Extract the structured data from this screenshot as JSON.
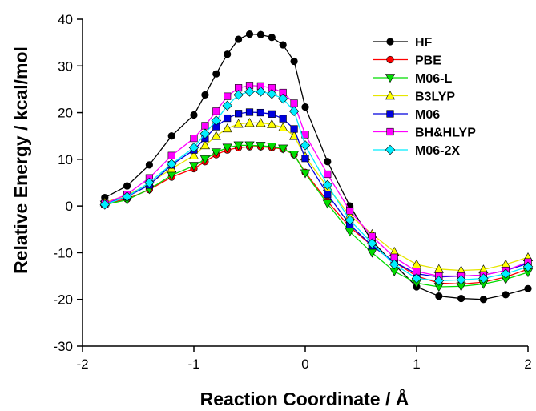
{
  "chart_data": {
    "type": "line",
    "xlabel": "Reaction Coordinate / Å",
    "ylabel": "Relative Energy / kcal/mol",
    "xlim": [
      -2,
      2
    ],
    "ylim": [
      -30,
      40
    ],
    "xticks": [
      -2,
      -1,
      0,
      1,
      2
    ],
    "yticks": [
      -30,
      -20,
      -10,
      0,
      10,
      20,
      30,
      40
    ],
    "grid": false,
    "legend_position": "top-right",
    "x": [
      -1.8,
      -1.6,
      -1.4,
      -1.2,
      -1.0,
      -0.9,
      -0.8,
      -0.7,
      -0.6,
      -0.5,
      -0.4,
      -0.3,
      -0.2,
      -0.1,
      0.0,
      0.2,
      0.4,
      0.6,
      0.8,
      1.0,
      1.2,
      1.4,
      1.6,
      1.8,
      2.0
    ],
    "series": [
      {
        "name": "HF",
        "color": "#000000",
        "marker": "circle",
        "values": [
          1.8,
          4.3,
          8.8,
          15.0,
          19.5,
          23.8,
          28.3,
          32.5,
          35.7,
          36.8,
          36.7,
          36.1,
          34.5,
          31.0,
          21.2,
          9.5,
          0.0,
          -7.5,
          -12.5,
          -17.3,
          -19.3,
          -19.8,
          -20.0,
          -19.0,
          -17.7
        ]
      },
      {
        "name": "PBE",
        "color": "#ff0000",
        "marker": "circle",
        "values": [
          0.5,
          1.5,
          3.5,
          6.2,
          8.0,
          9.5,
          11.0,
          12.0,
          12.5,
          12.7,
          12.7,
          12.5,
          12.2,
          11.0,
          7.2,
          1.0,
          -4.5,
          -8.5,
          -12.0,
          -15.0,
          -16.5,
          -16.7,
          -16.3,
          -15.2,
          -13.5
        ]
      },
      {
        "name": "M06-L",
        "color": "#00dd00",
        "marker": "triangle-down",
        "values": [
          0.3,
          1.3,
          3.6,
          6.6,
          8.6,
          10.0,
          11.5,
          12.5,
          13.0,
          13.0,
          12.9,
          12.7,
          12.3,
          11.0,
          7.0,
          0.5,
          -5.5,
          -10.0,
          -14.0,
          -16.5,
          -17.3,
          -17.2,
          -16.7,
          -15.7,
          -14.2
        ]
      },
      {
        "name": "B3LYP",
        "color": "#ffff00",
        "marker": "triangle-up",
        "values": [
          0.8,
          2.3,
          4.8,
          8.0,
          10.8,
          13.0,
          15.0,
          16.6,
          17.6,
          17.8,
          17.8,
          17.5,
          16.8,
          15.0,
          10.6,
          4.0,
          -2.0,
          -6.0,
          -9.8,
          -12.5,
          -13.5,
          -13.8,
          -13.6,
          -12.5,
          -11.0
        ]
      },
      {
        "name": "M06",
        "color": "#0000dd",
        "marker": "square",
        "values": [
          0.5,
          2.0,
          4.5,
          8.8,
          12.0,
          14.5,
          17.0,
          18.8,
          19.8,
          20.1,
          20.0,
          19.7,
          18.7,
          16.5,
          10.2,
          2.5,
          -4.0,
          -8.5,
          -12.0,
          -14.5,
          -15.2,
          -15.0,
          -14.8,
          -13.8,
          -12.3
        ]
      },
      {
        "name": "BH&HLYP",
        "color": "#ff00ff",
        "marker": "square",
        "values": [
          0.5,
          2.5,
          6.0,
          10.8,
          14.5,
          17.2,
          20.3,
          23.5,
          25.3,
          25.8,
          25.7,
          25.3,
          24.3,
          22.0,
          15.3,
          6.8,
          -1.0,
          -6.5,
          -11.0,
          -14.0,
          -15.0,
          -15.0,
          -14.8,
          -13.8,
          -12.0
        ]
      },
      {
        "name": "M06-2X",
        "color": "#00eeff",
        "marker": "diamond",
        "values": [
          0.3,
          2.0,
          5.0,
          9.0,
          12.5,
          15.5,
          18.3,
          21.5,
          23.8,
          24.5,
          24.5,
          24.0,
          23.0,
          20.3,
          13.0,
          4.5,
          -3.0,
          -8.0,
          -12.5,
          -15.5,
          -16.0,
          -15.8,
          -15.5,
          -14.5,
          -13.0
        ]
      }
    ]
  }
}
